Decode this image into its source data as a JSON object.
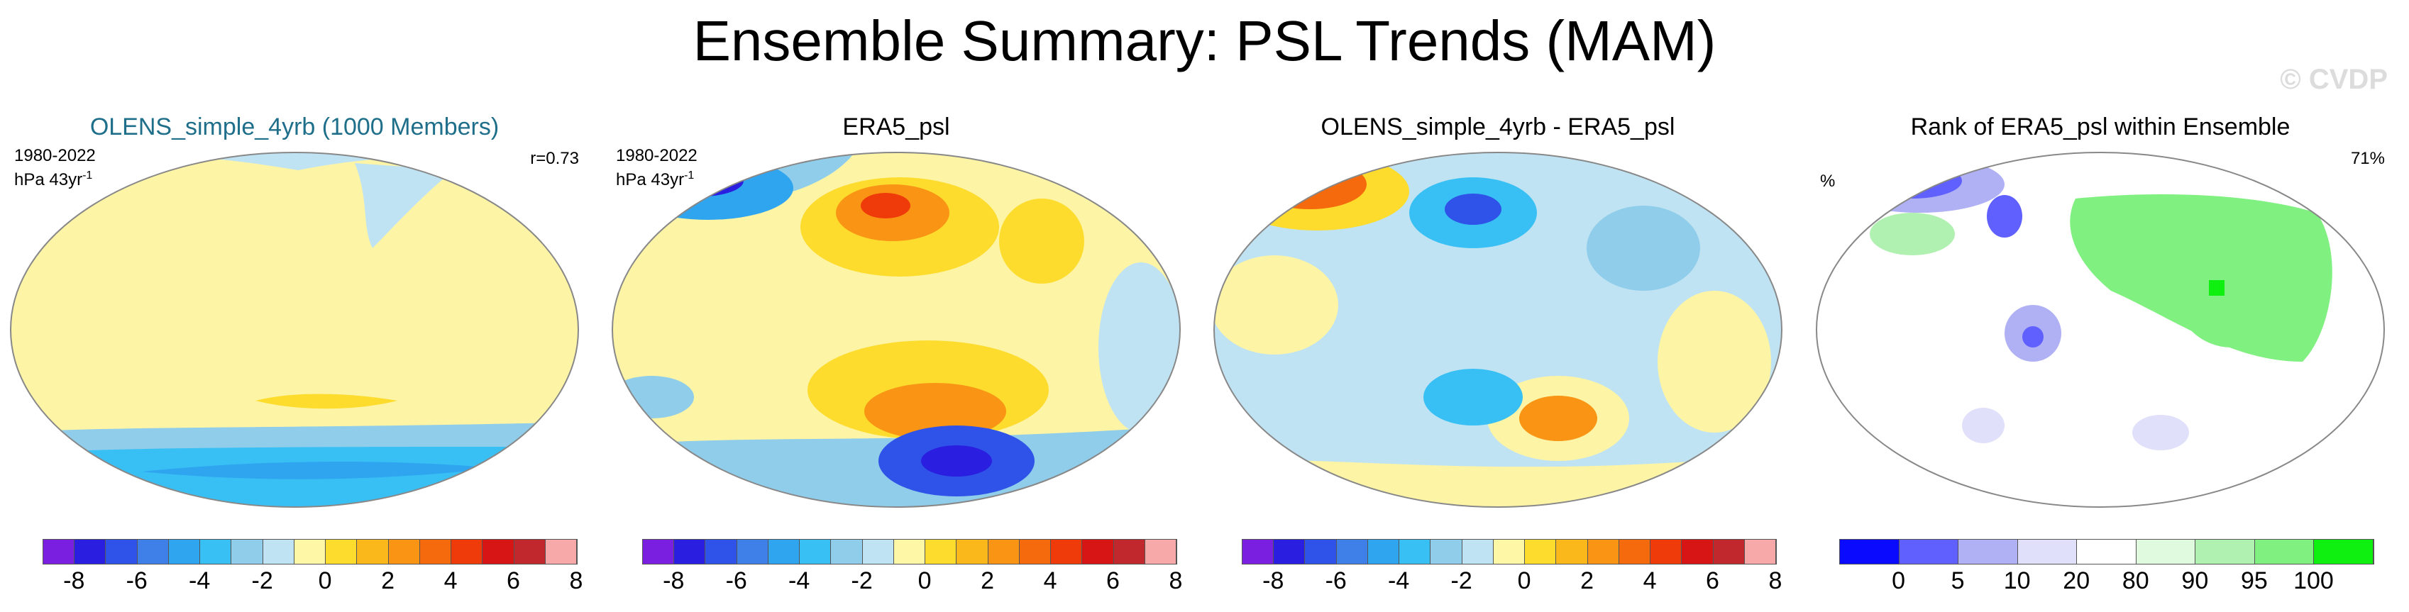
{
  "title": "Ensemble Summary: PSL Trends (MAM)",
  "watermark": "© CVDP",
  "panels": [
    {
      "title": "OLENS_simple_4yrb (1000 Members)",
      "left_line1": "1980-2022",
      "left_line2": "hPa 43yr",
      "left_sup": "-1",
      "right_text": "r=0.73"
    },
    {
      "title": "ERA5_psl",
      "left_line1": "1980-2022",
      "left_line2": "hPa 43yr",
      "left_sup": "-1",
      "right_text": ""
    },
    {
      "title": "OLENS_simple_4yrb - ERA5_psl",
      "left_line1": "",
      "left_line2": "",
      "left_sup": "",
      "right_text": ""
    },
    {
      "title": "Rank of ERA5_psl within Ensemble",
      "left_line1": "%",
      "left_line2": "",
      "left_sup": "",
      "right_text": "71%"
    }
  ],
  "colorbar_diverging": {
    "colors": [
      "#7a1fe0",
      "#2a1fe0",
      "#2f53e8",
      "#3f7fe8",
      "#2fa5f0",
      "#38c0f5",
      "#8fcdea",
      "#bfe3f3",
      "#fdf7a6",
      "#fddc2e",
      "#fbb81b",
      "#f99414",
      "#f46a0d",
      "#ef3b0a",
      "#d81515",
      "#c0282d",
      "#f7a8a8"
    ],
    "ticks": [
      "-8",
      "-6",
      "-4",
      "-2",
      "0",
      "2",
      "4",
      "6",
      "8"
    ]
  },
  "colorbar_rank": {
    "colors": [
      "#0a0aff",
      "#6060ff",
      "#b0b0f5",
      "#e0e0fa",
      "#ffffff",
      "#e0fae0",
      "#b0f0b0",
      "#80f080",
      "#10f010"
    ],
    "ticks": [
      "0",
      "5",
      "10",
      "20",
      "80",
      "90",
      "95",
      "100"
    ]
  }
}
